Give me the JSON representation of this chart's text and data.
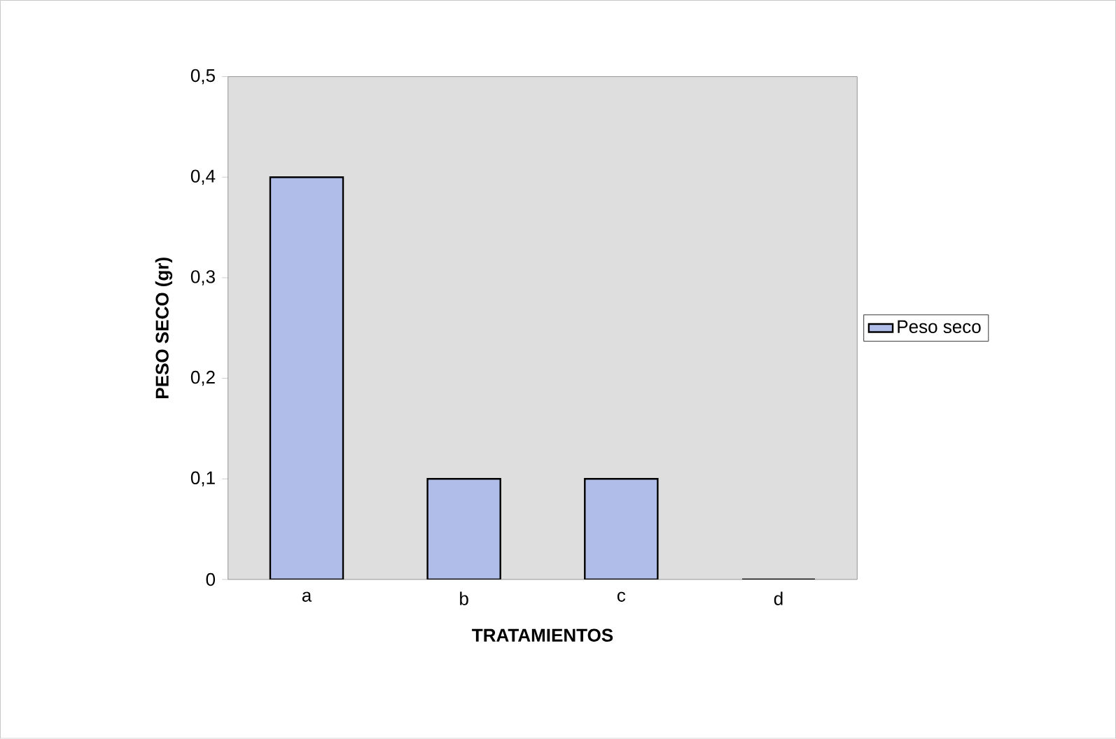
{
  "chart_data": {
    "type": "bar",
    "xlabel": "TRATAMIENTOS",
    "ylabel": "PESO SECO (gr)",
    "categories": [
      "a",
      "b",
      "c",
      "d"
    ],
    "series": [
      {
        "name": "Peso seco",
        "color": "#b0bde8",
        "values": [
          0.4,
          0.1,
          0.1,
          0
        ]
      }
    ],
    "ylim": [
      0,
      0.5
    ],
    "yticks": [
      0,
      {
        "value": 0.1,
        "label": "0,1"
      },
      {
        "value": 0.2,
        "label": "0,2"
      },
      {
        "value": 0.3,
        "label": "0,3"
      },
      {
        "value": 0.4,
        "label": "0,4"
      },
      {
        "value": 0.5,
        "label": "0,5"
      }
    ],
    "legend": "right"
  }
}
